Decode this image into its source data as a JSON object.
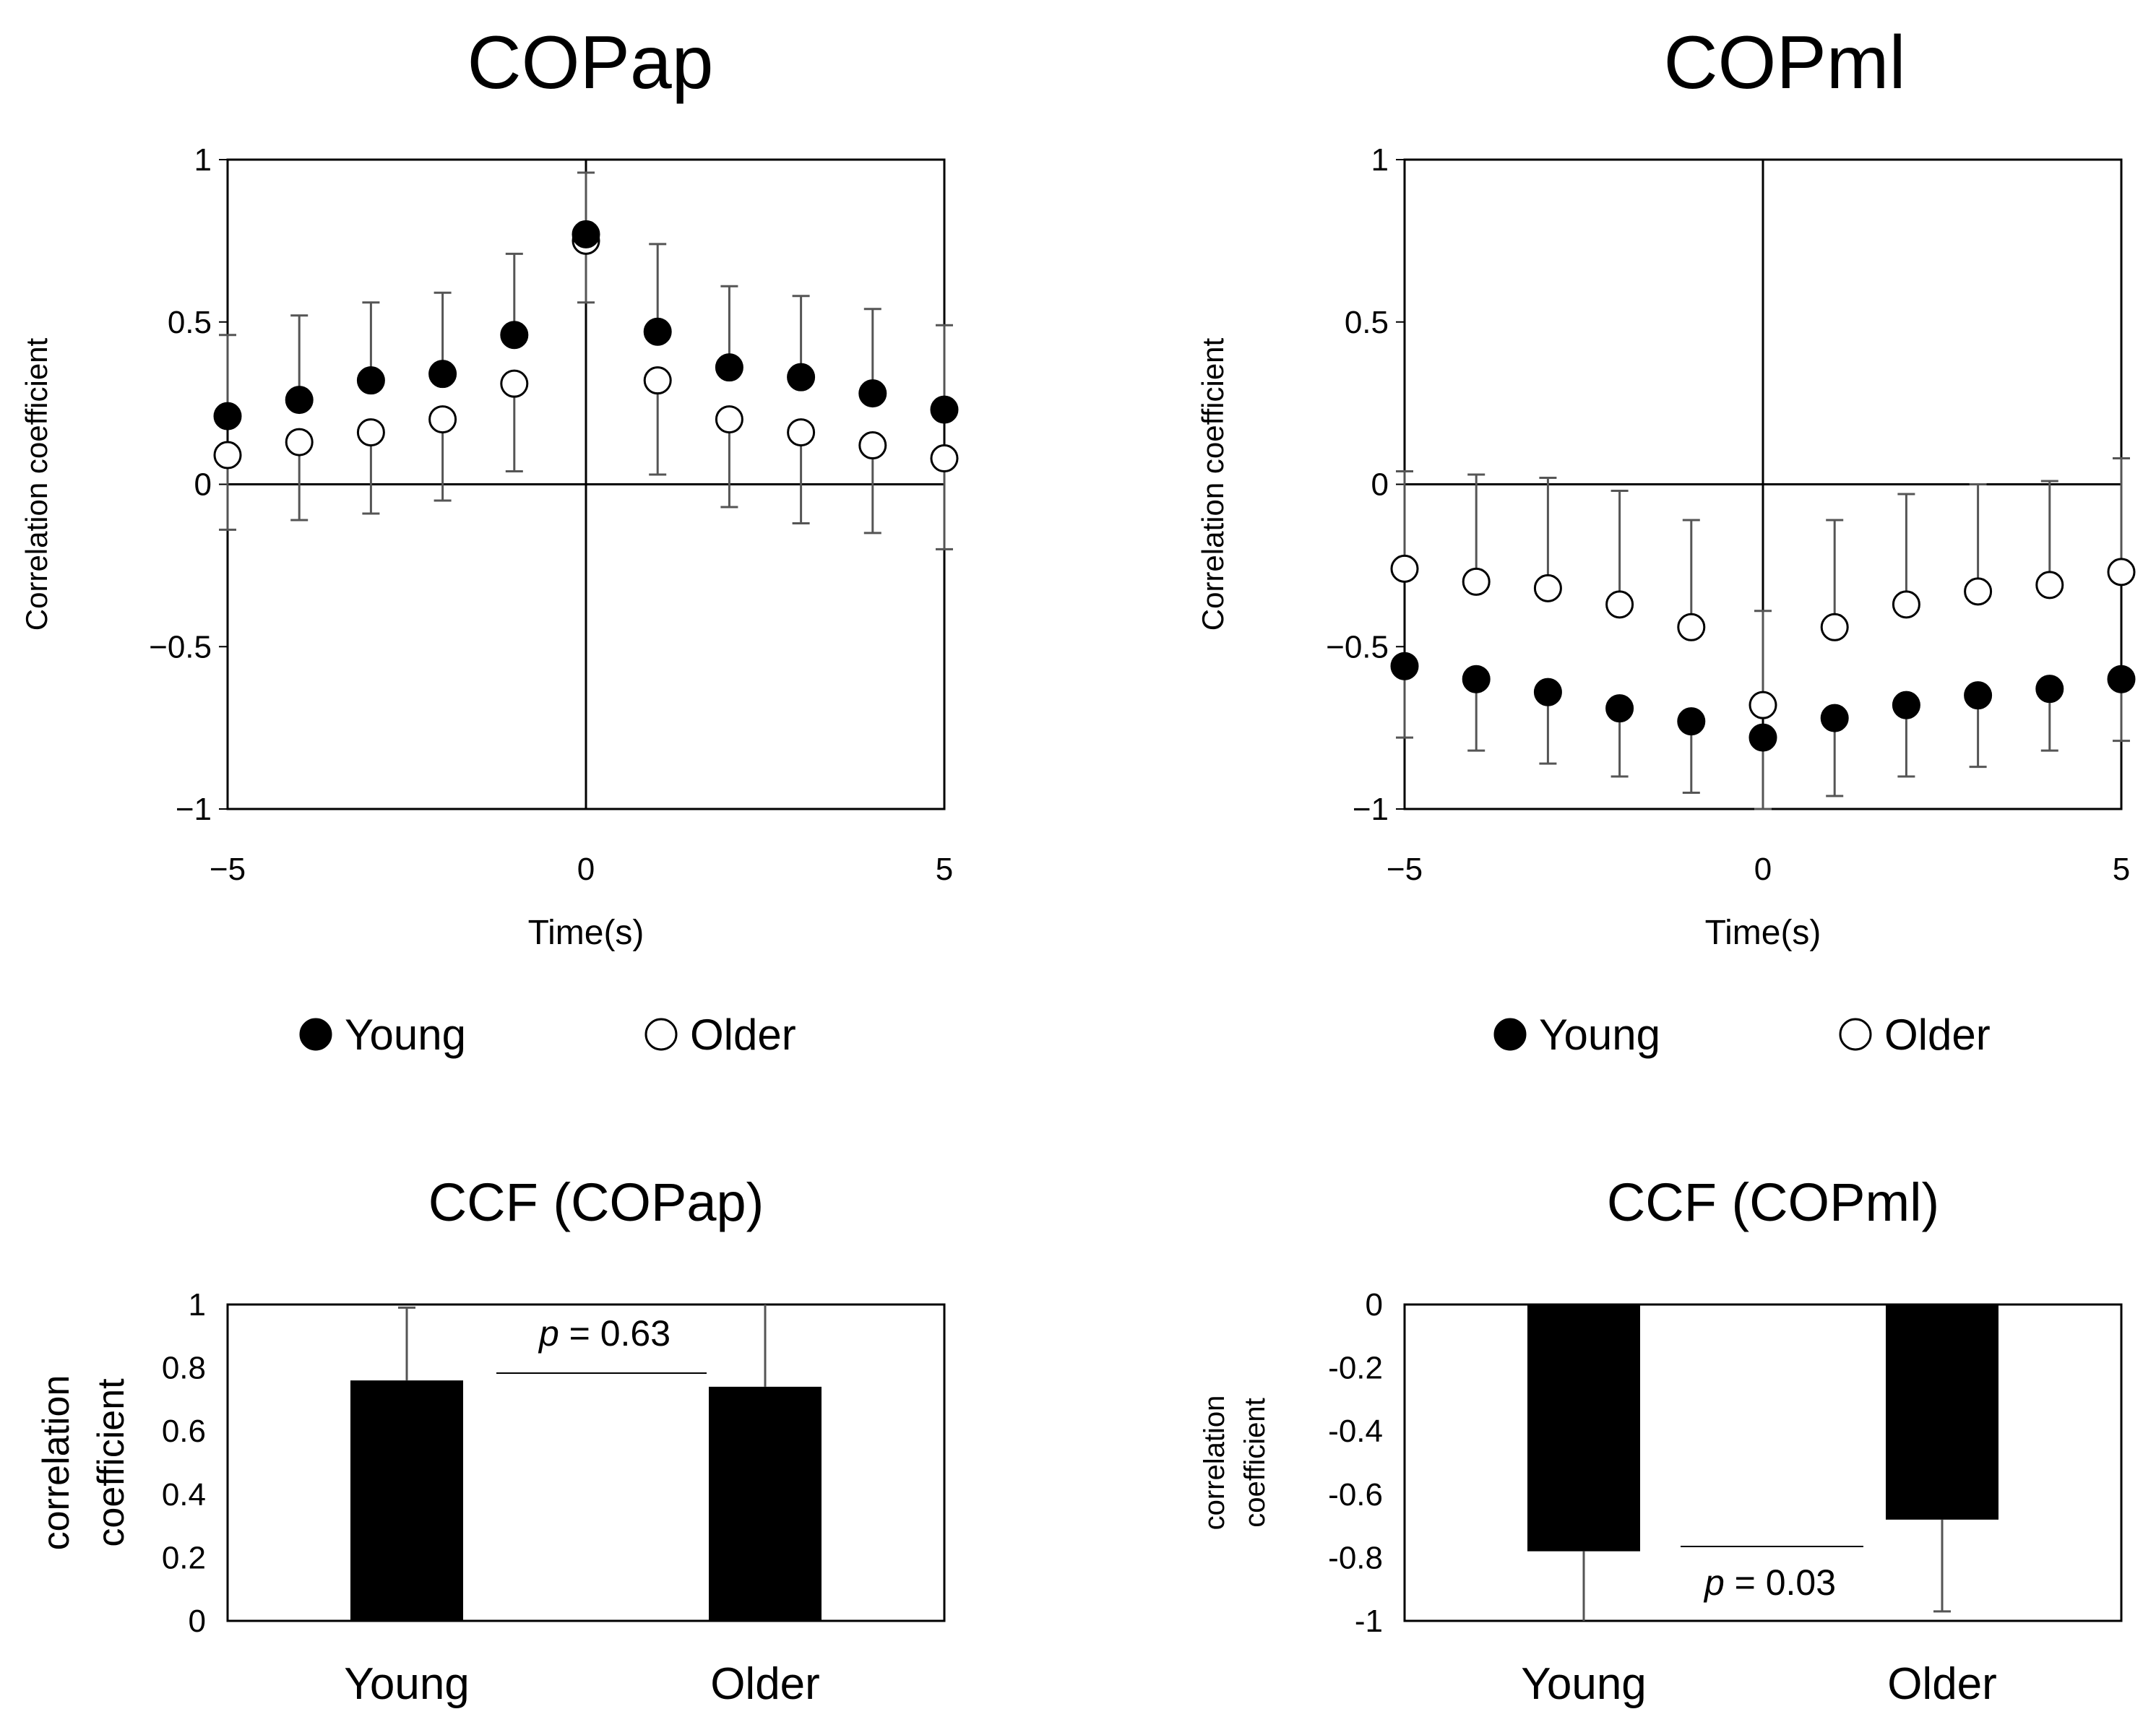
{
  "chart_data": [
    {
      "type": "scatter",
      "title": "COPap",
      "xlabel": "Time(s)",
      "ylabel": "Correlation coefficient",
      "xlim": [
        -5,
        5
      ],
      "ylim": [
        -1,
        1
      ],
      "x_ticks": [
        "−5",
        "0",
        "5"
      ],
      "y_ticks": [
        "−1",
        "−0.5",
        "0",
        "0.5",
        "1"
      ],
      "x": [
        -5,
        -4,
        -3,
        -2,
        -1,
        0,
        1,
        2,
        3,
        4,
        5
      ],
      "series": [
        {
          "name": "Young",
          "marker": "filled",
          "values": [
            0.21,
            0.26,
            0.32,
            0.34,
            0.46,
            0.77,
            0.47,
            0.36,
            0.33,
            0.28,
            0.23
          ],
          "error": [
            0.25,
            0.26,
            0.24,
            0.25,
            0.25,
            0.19,
            0.27,
            0.25,
            0.25,
            0.26,
            0.26
          ],
          "error_dir": "up"
        },
        {
          "name": "Older",
          "marker": "open",
          "values": [
            0.09,
            0.13,
            0.16,
            0.2,
            0.31,
            0.75,
            0.32,
            0.2,
            0.16,
            0.12,
            0.08
          ],
          "error": [
            0.23,
            0.24,
            0.25,
            0.25,
            0.27,
            0.19,
            0.29,
            0.27,
            0.28,
            0.27,
            0.28
          ],
          "error_dir": "down"
        }
      ],
      "legend": [
        "Young",
        "Older"
      ],
      "legend_position": "bottom"
    },
    {
      "type": "scatter",
      "title": "COPml",
      "xlabel": "Time(s)",
      "ylabel": "Correlation coefficient",
      "xlim": [
        -5,
        5
      ],
      "ylim": [
        -1,
        1
      ],
      "x_ticks": [
        "−5",
        "0",
        "5"
      ],
      "y_ticks": [
        "−1",
        "−0.5",
        "0",
        "0.5",
        "1"
      ],
      "x": [
        -5,
        -4,
        -3,
        -2,
        -1,
        0,
        1,
        2,
        3,
        4,
        5
      ],
      "series": [
        {
          "name": "Young",
          "marker": "filled",
          "values": [
            -0.56,
            -0.6,
            -0.64,
            -0.69,
            -0.73,
            -0.78,
            -0.72,
            -0.68,
            -0.65,
            -0.63,
            -0.6
          ],
          "error": [
            0.22,
            0.22,
            0.22,
            0.21,
            0.22,
            0.22,
            0.24,
            0.22,
            0.22,
            0.19,
            0.19
          ],
          "error_dir": "down"
        },
        {
          "name": "Older",
          "marker": "open",
          "values": [
            -0.26,
            -0.3,
            -0.32,
            -0.37,
            -0.44,
            -0.68,
            -0.44,
            -0.37,
            -0.33,
            -0.31,
            -0.27
          ],
          "error": [
            0.3,
            0.33,
            0.34,
            0.35,
            0.33,
            0.29,
            0.33,
            0.34,
            0.33,
            0.32,
            0.35
          ],
          "error_dir": "up"
        }
      ],
      "legend": [
        "Young",
        "Older"
      ],
      "legend_position": "bottom"
    },
    {
      "type": "bar",
      "title": "CCF (COPap)",
      "ylabel_lines": [
        "correlation",
        "coefficient"
      ],
      "categories": [
        "Young",
        "Older"
      ],
      "values": [
        0.76,
        0.74
      ],
      "error": [
        0.23,
        0.26
      ],
      "ylim": [
        0,
        1
      ],
      "y_ticks": [
        "0",
        "0.2",
        "0.4",
        "0.6",
        "0.8",
        "1"
      ],
      "annotation": {
        "p_label": "p",
        "p_value": " = 0.63"
      }
    },
    {
      "type": "bar",
      "title": "CCF (COPml)",
      "ylabel_lines": [
        "correlation",
        "coefficient"
      ],
      "categories": [
        "Young",
        "Older"
      ],
      "values": [
        -0.78,
        -0.68
      ],
      "error": [
        0.23,
        0.29
      ],
      "ylim": [
        -1,
        0
      ],
      "y_ticks": [
        "-1",
        "-0.8",
        "-0.6",
        "-0.4",
        "-0.2",
        "0"
      ],
      "annotation": {
        "p_label": "p",
        "p_value": " = 0.03"
      }
    }
  ]
}
